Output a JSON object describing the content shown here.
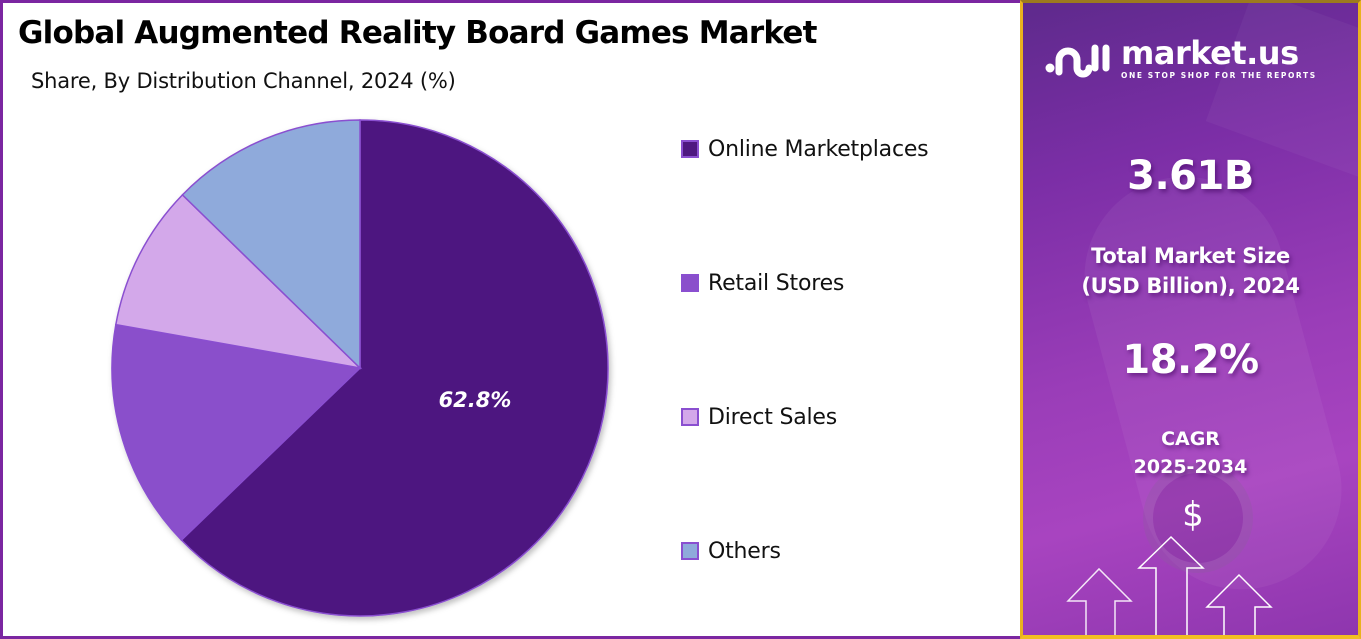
{
  "header": {
    "title": "Global Augmented Reality Board Games Market",
    "subtitle": "Share, By Distribution Channel, 2024 (%)"
  },
  "chart_data": {
    "type": "pie",
    "title": "Global Augmented Reality Board Games Market",
    "subtitle": "Share, By Distribution Channel, 2024 (%)",
    "categories": [
      "Online Marketplaces",
      "Retail Stores",
      "Direct Sales",
      "Others"
    ],
    "values": [
      62.8,
      15.0,
      9.5,
      12.7
    ],
    "colors": [
      "#4E1880",
      "#8A4FCB",
      "#D3A8EA",
      "#8FAADB"
    ],
    "data_labels": [
      "62.8%",
      "",
      "",
      ""
    ],
    "start_angle": "12 o'clock, clockwise",
    "legend_position": "right"
  },
  "legend": {
    "items": [
      {
        "label": "Online Marketplaces",
        "color": "#4E1880"
      },
      {
        "label": "Retail Stores",
        "color": "#8A4FCB"
      },
      {
        "label": "Direct Sales",
        "color": "#D3A8EA"
      },
      {
        "label": "Others",
        "color": "#8FAADB"
      }
    ]
  },
  "pie_label": "62.8%",
  "sidebar": {
    "logo": {
      "name": "market.us",
      "tagline": "ONE STOP SHOP FOR THE REPORTS",
      "icon": "market-us-logo-icon"
    },
    "market_size_value": "3.61B",
    "market_size_label_line1": "Total Market Size",
    "market_size_label_line2": "(USD Billion), 2024",
    "cagr_value": "18.2%",
    "cagr_label_line1": "CAGR",
    "cagr_label_line2": "2025-2034",
    "dollar_symbol": "$",
    "icons": [
      "dollar-icon",
      "up-arrow-icon"
    ]
  },
  "colors": {
    "panel_border": "#7B26A1",
    "sidebar_border": "#E9B21E",
    "accent_dark": "#4E1880"
  }
}
